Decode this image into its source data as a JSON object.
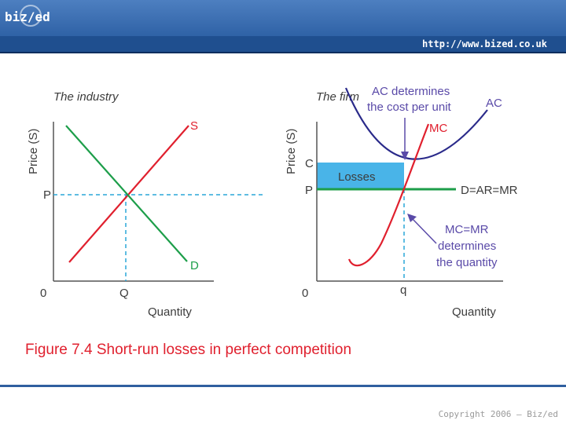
{
  "header": {
    "logo_text": "biz/ed",
    "url": "http://www.bized.co.uk"
  },
  "footer": {
    "copyright": "Copyright 2006 – Biz/ed"
  },
  "colors": {
    "header": "#3a6cb0",
    "supply": "#e0202e",
    "demand": "#1d9e4a",
    "guide": "#2aa7d8",
    "losses": "#49b4e8",
    "annotation": "#5a4aa8"
  },
  "figure": {
    "caption": "Figure 7.4 Short-run losses in perfect competition",
    "industry": {
      "title": "The industry",
      "y_label": "Price (S)",
      "x_label": "Quantity",
      "origin": "0",
      "p_label": "P",
      "q_label": "Q",
      "s_label": "S",
      "d_label": "D"
    },
    "firm": {
      "title": "The firm",
      "y_label": "Price (S)",
      "x_label": "Quantity",
      "origin": "0",
      "c_label": "C",
      "p_label": "P",
      "q_label": "q",
      "ac_label": "AC",
      "mc_label": "MC",
      "d_label": "D=AR=MR",
      "losses_label": "Losses",
      "note_ac_line1": "AC determines",
      "note_ac_line2": "the cost per unit",
      "note_mc_line1": "MC=MR",
      "note_mc_line2": "determines",
      "note_mc_line3": "the quantity"
    }
  }
}
